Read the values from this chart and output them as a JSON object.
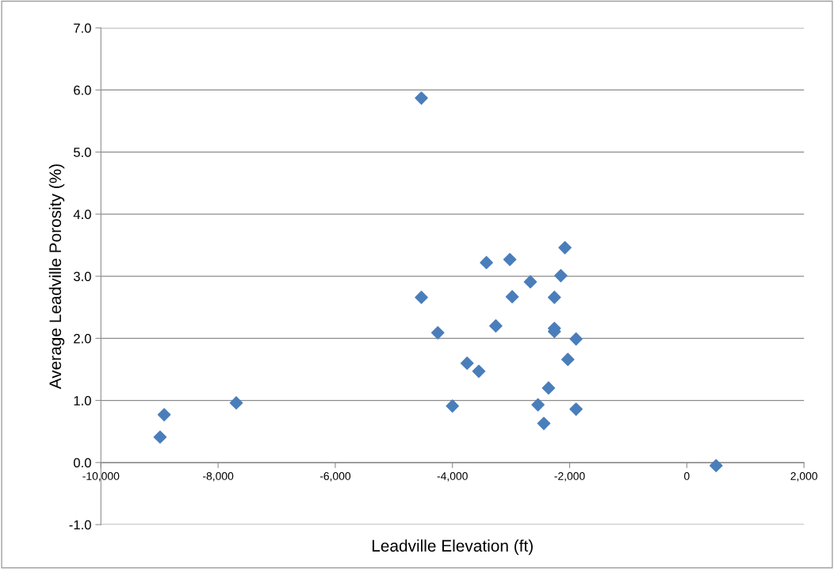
{
  "chart_data": {
    "type": "scatter",
    "xlabel": "Leadville Elevation (ft)",
    "ylabel": "Average Leadville Porosity (%)",
    "series": [
      {
        "color": "#4a7ebb",
        "x": [
          -8990,
          -8920,
          -7690,
          -4530,
          -4530,
          -4250,
          -4000,
          -3750,
          -3550,
          -3420,
          -3260,
          -3020,
          -2980,
          -2670,
          -2540,
          -2440,
          -2360,
          -2260,
          -2260,
          -2260,
          -2150,
          -2080,
          -2030,
          -1890,
          -1890,
          500
        ],
        "values": [
          0.41,
          0.77,
          0.96,
          5.87,
          2.66,
          2.09,
          0.91,
          1.6,
          1.47,
          3.22,
          2.2,
          3.27,
          2.67,
          2.91,
          0.93,
          0.63,
          1.2,
          2.66,
          2.16,
          2.11,
          3.01,
          3.46,
          1.66,
          0.86,
          1.99,
          -0.05
        ]
      }
    ],
    "marker": "diamond",
    "grid": "y",
    "xlim": [
      -10000,
      2000
    ],
    "ylim": [
      -1,
      7
    ],
    "xticks": [
      {
        "value": -10000,
        "label": "-10,000"
      },
      {
        "value": -8000,
        "label": "-8,000"
      },
      {
        "value": -6000,
        "label": "-6,000"
      },
      {
        "value": -4000,
        "label": "-4,000"
      },
      {
        "value": -2000,
        "label": "-2,000"
      },
      0,
      {
        "value": 2000,
        "label": "2,000"
      }
    ],
    "yticks": [
      {
        "value": -1,
        "label": "-1.0"
      },
      {
        "value": 0,
        "label": "0.0"
      },
      {
        "value": 1,
        "label": "1.0"
      },
      {
        "value": 2,
        "label": "2.0"
      },
      {
        "value": 3,
        "label": "3.0"
      },
      {
        "value": 4,
        "label": "4.0"
      },
      {
        "value": 5,
        "label": "5.0"
      },
      {
        "value": 6,
        "label": "6.0"
      },
      {
        "value": 7,
        "label": "7.0"
      }
    ]
  }
}
